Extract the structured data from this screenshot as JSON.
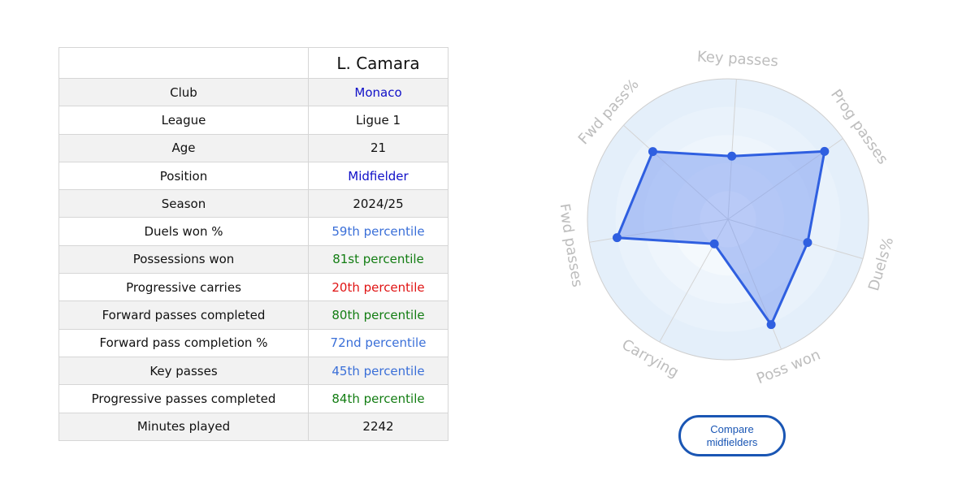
{
  "player": {
    "name": "L. Camara"
  },
  "colors": {
    "navy": "#1010c8",
    "blue": "#3a6fd8",
    "green": "#137d13",
    "red": "#e01414",
    "black": "#111111",
    "radar_fill": "#7f9ff0",
    "radar_line": "#2f5fe0"
  },
  "rows": [
    {
      "label": "Club",
      "value": "Monaco",
      "color": "navy"
    },
    {
      "label": "League",
      "value": "Ligue 1",
      "color": "black"
    },
    {
      "label": "Age",
      "value": "21",
      "color": "black"
    },
    {
      "label": "Position",
      "value": "Midfielder",
      "color": "navy"
    },
    {
      "label": "Season",
      "value": "2024/25",
      "color": "black"
    },
    {
      "label": "Duels won %",
      "value": "59th percentile",
      "color": "blue"
    },
    {
      "label": "Possessions won",
      "value": "81st percentile",
      "color": "green"
    },
    {
      "label": "Progressive carries",
      "value": "20th percentile",
      "color": "red"
    },
    {
      "label": "Forward passes completed",
      "value": "80th percentile",
      "color": "green"
    },
    {
      "label": "Forward pass completion %",
      "value": "72nd percentile",
      "color": "blue"
    },
    {
      "label": "Key passes",
      "value": "45th percentile",
      "color": "blue"
    },
    {
      "label": "Progressive passes completed",
      "value": "84th percentile",
      "color": "green"
    },
    {
      "label": "Minutes played",
      "value": "2242",
      "color": "black"
    }
  ],
  "chart_data": {
    "type": "radar",
    "categories": [
      "Key passes",
      "Prog passes",
      "Duels%",
      "Poss won",
      "Carrying",
      "Fwd passes",
      "Fwd pass%"
    ],
    "values": [
      45,
      84,
      59,
      81,
      20,
      80,
      72
    ],
    "range": [
      0,
      100
    ],
    "grid": true
  },
  "button": {
    "label": "Compare midfielders"
  }
}
